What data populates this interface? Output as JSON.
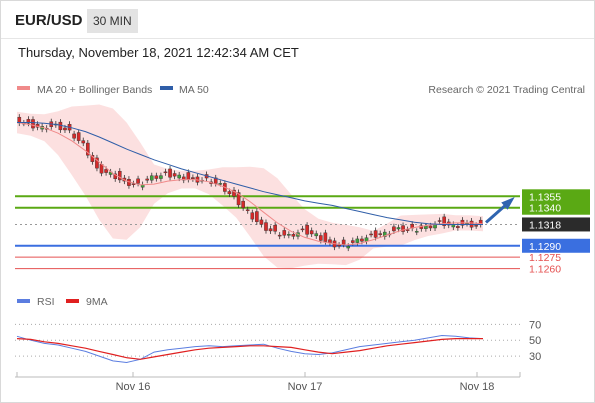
{
  "header": {
    "symbol": "EUR/USD",
    "timeframe": "30 MIN",
    "timestamp": "Thursday, November 18, 2021 12:42:34 AM CET"
  },
  "legend": {
    "ma20_bollinger": "MA 20 + Bollinger Bands",
    "ma50": "MA 50",
    "credit": "Research © 2021 Trading Central",
    "rsi": "RSI",
    "rsi_ma": "9MA"
  },
  "colors": {
    "resistance": "#5aa914",
    "support": "#3a6fe0",
    "pivot_low": "#e55050",
    "ma20": "#f08a8a",
    "band_fill": "#fbd5d5",
    "ma50": "#2f5ea8",
    "candle_up": "#3da23d",
    "candle_down": "#d42a2a",
    "arrow": "#2f64b0",
    "last_price_bg": "#2b2b2b",
    "rsi": "#5b7de0",
    "rsi_ma": "#e02020"
  },
  "chart_data": [
    {
      "type": "line",
      "title": "EUR/USD 30 MIN",
      "x_tick_labels": [
        "Nov 16",
        "Nov 17",
        "Nov 18"
      ],
      "y_range": [
        1.1245,
        1.1475
      ],
      "last_price": 1.1318,
      "levels": [
        {
          "label": "1.1355",
          "value": 1.1355,
          "kind": "resistance"
        },
        {
          "label": "1.1340",
          "value": 1.134,
          "kind": "resistance"
        },
        {
          "label": "1.1290",
          "value": 1.129,
          "kind": "support"
        },
        {
          "label": "1.1275",
          "value": 1.1275,
          "kind": "pivot"
        },
        {
          "label": "1.1260",
          "value": 1.126,
          "kind": "pivot"
        }
      ],
      "series": [
        {
          "name": "MA 20 + Bollinger Bands",
          "values": [
            1.1452,
            1.1449,
            1.1445,
            1.1438,
            1.1428,
            1.1415,
            1.14,
            1.1385,
            1.1375,
            1.137,
            1.1371,
            1.1375,
            1.1377,
            1.1377,
            1.1374,
            1.1368,
            1.136,
            1.1348,
            1.1334,
            1.132,
            1.1309,
            1.1301,
            1.1296,
            1.1293,
            1.1291,
            1.1293,
            1.1298,
            1.1304,
            1.131,
            1.1314,
            1.1317,
            1.1319,
            1.132,
            1.132,
            1.1319
          ]
        },
        {
          "name": "MA 50",
          "values": [
            1.1452,
            1.1452,
            1.1451,
            1.1449,
            1.1445,
            1.144,
            1.1433,
            1.1425,
            1.1417,
            1.141,
            1.1403,
            1.1397,
            1.1391,
            1.1386,
            1.1381,
            1.1376,
            1.1371,
            1.1366,
            1.1361,
            1.1357,
            1.1353,
            1.1349,
            1.1346,
            1.1343,
            1.1339,
            1.1335,
            1.1331,
            1.1327,
            1.1324,
            1.1321,
            1.1319,
            1.1318,
            1.1318,
            1.1318,
            1.1318
          ]
        },
        {
          "name": "Price",
          "values": [
            1.1459,
            1.1451,
            1.1447,
            1.145,
            1.1442,
            1.1425,
            1.1392,
            1.1387,
            1.1375,
            1.1372,
            1.1382,
            1.1386,
            1.1383,
            1.1378,
            1.1379,
            1.1372,
            1.1355,
            1.1336,
            1.1318,
            1.1309,
            1.1305,
            1.1312,
            1.1306,
            1.1294,
            1.1292,
            1.1299,
            1.1305,
            1.1308,
            1.1314,
            1.1313,
            1.1316,
            1.1323,
            1.1318,
            1.132,
            1.1318
          ]
        }
      ]
    },
    {
      "type": "line",
      "title": "RSI",
      "y_ticks": [
        70,
        50,
        30
      ],
      "y_range": [
        10,
        78
      ],
      "series": [
        {
          "name": "RSI",
          "values": [
            55,
            50,
            46,
            44,
            40,
            36,
            30,
            24,
            22,
            26,
            35,
            38,
            40,
            42,
            43,
            42,
            43,
            44,
            45,
            40,
            36,
            33,
            32,
            34,
            38,
            42,
            44,
            46,
            48,
            50,
            53,
            56,
            55,
            53,
            52
          ]
        },
        {
          "name": "9MA",
          "values": [
            52,
            51,
            48,
            46,
            43,
            40,
            36,
            32,
            28,
            26,
            29,
            32,
            35,
            38,
            40,
            41,
            42,
            43,
            43,
            42,
            41,
            38,
            35,
            33,
            35,
            37,
            40,
            43,
            45,
            47,
            49,
            51,
            52,
            52,
            52
          ]
        }
      ]
    }
  ]
}
